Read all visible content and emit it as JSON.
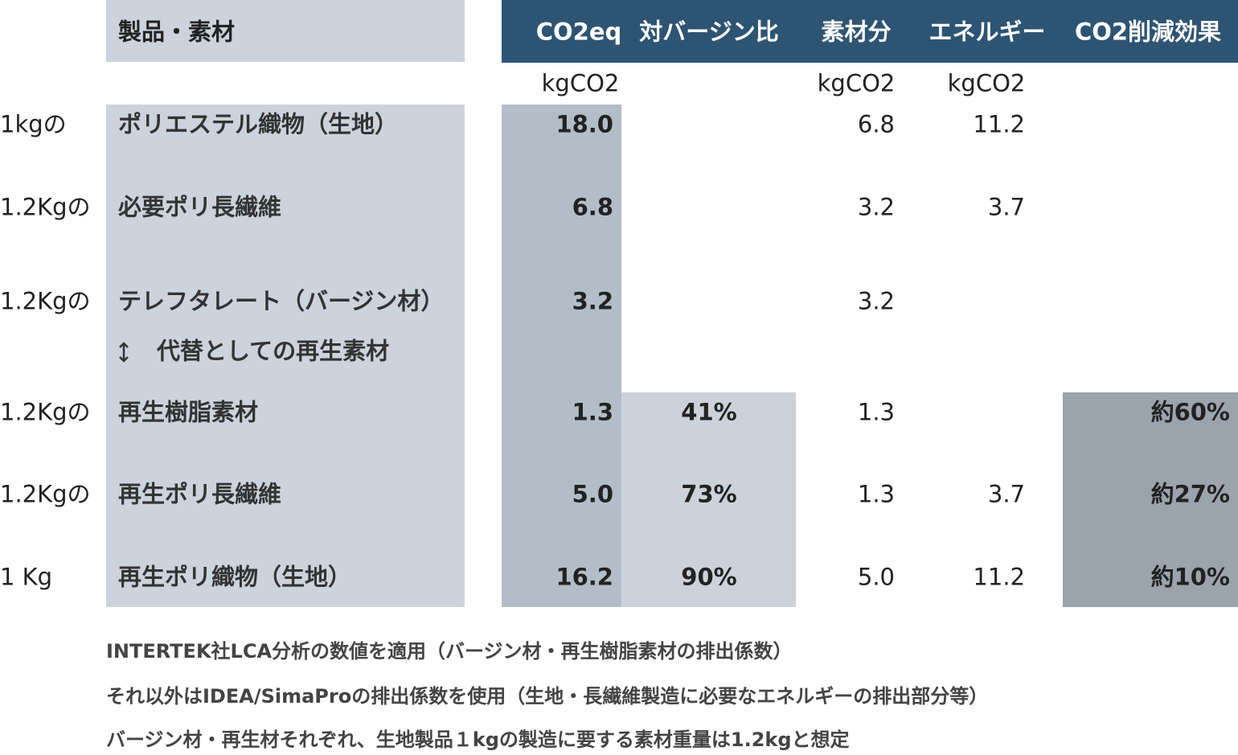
{
  "header": {
    "product": "製品・素材",
    "columns": [
      "CO2eq",
      "対バージン比",
      "素材分",
      "エネルギー",
      "CO2削減効果"
    ]
  },
  "units": {
    "co2eq": "kgCO2",
    "material": "kgCO2",
    "energy": "kgCO2"
  },
  "rows": [
    {
      "prefix": "1kgの",
      "name": "ポリエステル織物（生地）",
      "co2eq": "18.0",
      "material": "6.8",
      "energy": "11.2"
    },
    {
      "prefix": "1.2Kgの",
      "name": "必要ポリ長繊維",
      "co2eq": "6.8",
      "material": "3.2",
      "energy": "3.7"
    },
    {
      "prefix": "1.2Kgの",
      "name": "テレフタレート（バージン材）",
      "co2eq": "3.2",
      "material": "3.2"
    },
    {
      "prefix": "1.2Kgの",
      "name": "再生樹脂素材",
      "co2eq": "1.3",
      "ratio": "41%",
      "material": "1.3",
      "effect": "約60%"
    },
    {
      "prefix": "1.2Kgの",
      "name": "再生ポリ長繊維",
      "co2eq": "5.0",
      "ratio": "73%",
      "material": "1.3",
      "energy": "3.7",
      "effect": "約27%"
    },
    {
      "prefix": "1 Kg",
      "name": "再生ポリ織物（生地）",
      "co2eq": "16.2",
      "ratio": "90%",
      "material": "5.0",
      "energy": "11.2",
      "effect": "約10%"
    }
  ],
  "substitution_note": "代替としての再生素材",
  "footnotes": [
    "INTERTEK社LCA分析の数値を適用（バージン材・再生樹脂素材の排出係数）",
    "それ以外はIDEA/SimaProの排出係数を使用（生地・長繊維製造に必要なエネルギーの排出部分等）",
    "バージン材・再生材それぞれ、生地製品１kgの製造に要する素材重量は1.2kgと想定"
  ]
}
